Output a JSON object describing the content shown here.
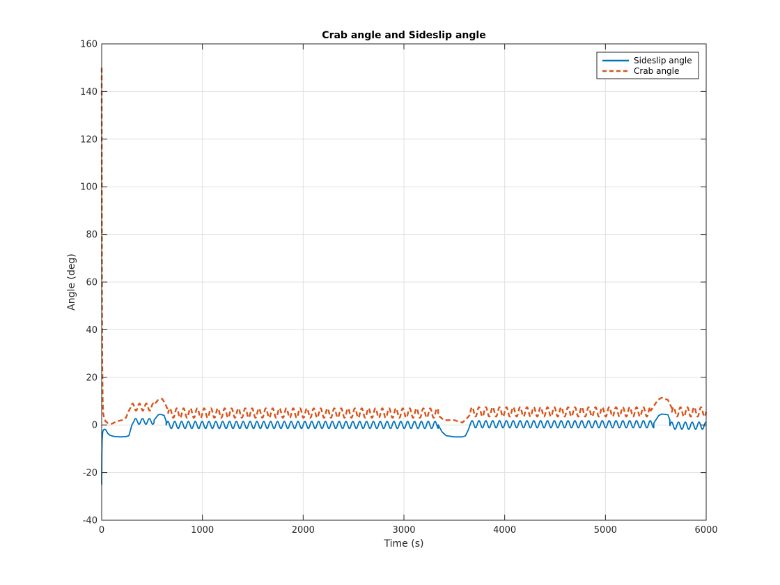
{
  "chart_data": {
    "type": "line",
    "title": "Crab angle and Sideslip angle",
    "xlabel": "Time (s)",
    "ylabel": "Angle (deg)",
    "xlim": [
      0,
      6000
    ],
    "ylim": [
      -40,
      160
    ],
    "xticks": [
      0,
      1000,
      2000,
      3000,
      4000,
      5000,
      6000
    ],
    "yticks": [
      -40,
      -20,
      0,
      20,
      40,
      60,
      80,
      100,
      120,
      140,
      160
    ],
    "xtick_labels": [
      "0",
      "1000",
      "2000",
      "3000",
      "4000",
      "5000",
      "6000"
    ],
    "ytick_labels": [
      "-40",
      "-20",
      "0",
      "20",
      "40",
      "60",
      "80",
      "100",
      "120",
      "140",
      "160"
    ],
    "grid": true,
    "legend_position": "top-right",
    "series": [
      {
        "name": "Sideslip angle",
        "color": "#0072BD",
        "style": "solid",
        "segments": [
          {
            "x": [
              0,
              2,
              5,
              10,
              15,
              25,
              40,
              60,
              80,
              120,
              180,
              240,
              270
            ],
            "y": [
              -25,
              -12,
              -6,
              -3,
              -2.2,
              -1.8,
              -2,
              -3.5,
              -4.3,
              -4.8,
              -5,
              -4.9,
              -4.5
            ]
          },
          {
            "x": [
              270,
              300,
              320
            ],
            "y": [
              -4.5,
              0,
              1.5
            ]
          },
          {
            "type": "oscillation",
            "x0": 320,
            "x1": 520,
            "mean": 1.5,
            "amp": 1.2,
            "period": 68
          },
          {
            "x": [
              520,
              560,
              580,
              620,
              640
            ],
            "y": [
              2,
              4.2,
              4.5,
              4.0,
              1.5
            ]
          },
          {
            "type": "oscillation",
            "x0": 640,
            "x1": 3340,
            "mean": 0.0,
            "amp": 1.5,
            "period": 68
          },
          {
            "x": [
              3340,
              3380,
              3420,
              3500,
              3580,
              3610,
              3640,
              3660
            ],
            "y": [
              0,
              -3,
              -4.5,
              -5,
              -5,
              -4.6,
              -2,
              0.5
            ]
          },
          {
            "type": "oscillation",
            "x0": 3660,
            "x1": 5480,
            "mean": 0.3,
            "amp": 1.5,
            "period": 68
          },
          {
            "x": [
              5480,
              5530,
              5560,
              5620,
              5640
            ],
            "y": [
              0.8,
              4.0,
              4.6,
              4.3,
              2.0
            ]
          },
          {
            "type": "oscillation",
            "x0": 5640,
            "x1": 6000,
            "mean": -0.3,
            "amp": 1.5,
            "period": 68
          }
        ]
      },
      {
        "name": "Crab angle",
        "color": "#D95319",
        "style": "dashed",
        "segments": [
          {
            "x": [
              0,
              1,
              3,
              6,
              10,
              15,
              25,
              40,
              60,
              100,
              150,
              200,
              240
            ],
            "y": [
              150,
              110,
              60,
              25,
              10,
              5,
              2.5,
              1.5,
              0.8,
              0.5,
              1.5,
              2.0,
              3.0
            ]
          },
          {
            "x": [
              240,
              270,
              290
            ],
            "y": [
              3.0,
              6.0,
              7.5
            ]
          },
          {
            "type": "oscillation",
            "x0": 290,
            "x1": 520,
            "mean": 7.5,
            "amp": 1.5,
            "period": 68
          },
          {
            "x": [
              520,
              560,
              600,
              630,
              660
            ],
            "y": [
              8.5,
              10.5,
              11,
              9,
              6
            ]
          },
          {
            "type": "oscillation",
            "x0": 660,
            "x1": 3340,
            "mean": 5.0,
            "amp": 2.0,
            "period": 68
          },
          {
            "x": [
              3340,
              3400,
              3500,
              3580,
              3620,
              3660
            ],
            "y": [
              4.0,
              2.0,
              2.0,
              1.0,
              2.5,
              4.5
            ]
          },
          {
            "type": "oscillation",
            "x0": 3660,
            "x1": 5450,
            "mean": 5.5,
            "amp": 2.0,
            "period": 68
          },
          {
            "x": [
              5450,
              5520,
              5560,
              5620,
              5660
            ],
            "y": [
              6.0,
              10.5,
              11.5,
              10.5,
              7.0
            ]
          },
          {
            "type": "oscillation",
            "x0": 5660,
            "x1": 6000,
            "mean": 5.5,
            "amp": 2.0,
            "period": 68
          }
        ]
      }
    ]
  }
}
